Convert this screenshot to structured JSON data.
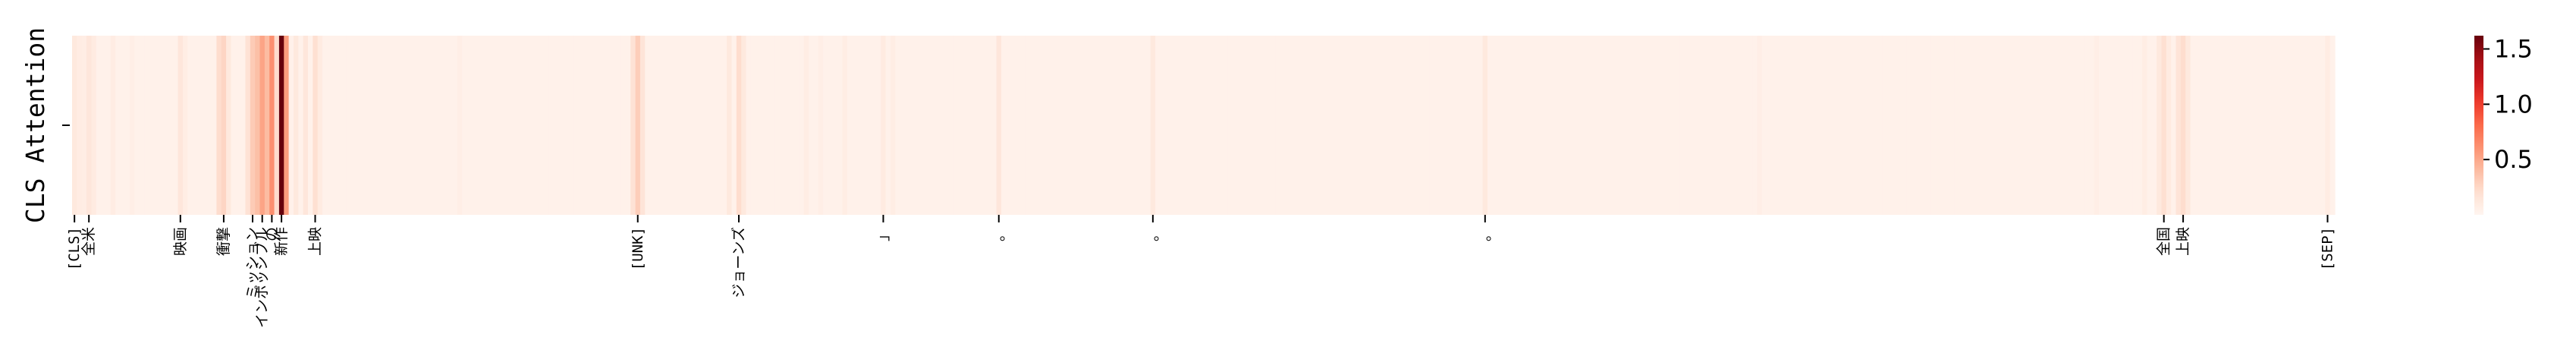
{
  "chart_data": {
    "type": "heatmap",
    "title": "",
    "ylabel": "CLS Attention",
    "y_tick_labels": [
      ""
    ],
    "x_tick_labels": [
      "[CLS]",
      "全米",
      "映画",
      "衝撃",
      "ミッション",
      "インポッシブル",
      "の",
      "新作",
      "上映",
      "[UNK]",
      "ジョーンズ",
      "」",
      "。",
      "。",
      "。",
      "全国",
      "上映",
      "[SEP]"
    ],
    "x_tick_positions": [
      0,
      3,
      22,
      31,
      37,
      39,
      41,
      43,
      50,
      117,
      138,
      168,
      192,
      224,
      293,
      434,
      438,
      468
    ],
    "n_tokens": 470,
    "colormap": "Reds",
    "colorbar": {
      "ticks": [
        0.5,
        1.0,
        1.5
      ],
      "tick_labels": [
        "0.5",
        "1.0",
        "1.5"
      ],
      "vmin": 0.0,
      "vmax": 1.62
    },
    "base_value": 0.04,
    "values": [
      {
        "i": 0,
        "v": 0.12
      },
      {
        "i": 1,
        "v": 0.09
      },
      {
        "i": 2,
        "v": 0.08
      },
      {
        "i": 3,
        "v": 0.14
      },
      {
        "i": 4,
        "v": 0.1
      },
      {
        "i": 8,
        "v": 0.09
      },
      {
        "i": 12,
        "v": 0.07
      },
      {
        "i": 22,
        "v": 0.14
      },
      {
        "i": 23,
        "v": 0.08
      },
      {
        "i": 30,
        "v": 0.22
      },
      {
        "i": 31,
        "v": 0.26
      },
      {
        "i": 32,
        "v": 0.12
      },
      {
        "i": 36,
        "v": 0.18
      },
      {
        "i": 37,
        "v": 0.32
      },
      {
        "i": 38,
        "v": 0.38
      },
      {
        "i": 39,
        "v": 0.52
      },
      {
        "i": 40,
        "v": 0.4
      },
      {
        "i": 41,
        "v": 0.62
      },
      {
        "i": 42,
        "v": 0.22
      },
      {
        "i": 43,
        "v": 1.62
      },
      {
        "i": 44,
        "v": 0.55
      },
      {
        "i": 46,
        "v": 0.12
      },
      {
        "i": 48,
        "v": 0.14
      },
      {
        "i": 50,
        "v": 0.2
      },
      {
        "i": 51,
        "v": 0.1
      },
      {
        "i": 80,
        "v": 0.07
      },
      {
        "i": 116,
        "v": 0.18
      },
      {
        "i": 117,
        "v": 0.3
      },
      {
        "i": 118,
        "v": 0.16
      },
      {
        "i": 136,
        "v": 0.12
      },
      {
        "i": 138,
        "v": 0.22
      },
      {
        "i": 139,
        "v": 0.12
      },
      {
        "i": 152,
        "v": 0.08
      },
      {
        "i": 155,
        "v": 0.07
      },
      {
        "i": 160,
        "v": 0.08
      },
      {
        "i": 168,
        "v": 0.1
      },
      {
        "i": 170,
        "v": 0.08
      },
      {
        "i": 192,
        "v": 0.14
      },
      {
        "i": 224,
        "v": 0.12
      },
      {
        "i": 293,
        "v": 0.12
      },
      {
        "i": 350,
        "v": 0.07
      },
      {
        "i": 420,
        "v": 0.07
      },
      {
        "i": 430,
        "v": 0.08
      },
      {
        "i": 433,
        "v": 0.12
      },
      {
        "i": 434,
        "v": 0.2
      },
      {
        "i": 435,
        "v": 0.1
      },
      {
        "i": 437,
        "v": 0.16
      },
      {
        "i": 438,
        "v": 0.22
      },
      {
        "i": 439,
        "v": 0.12
      },
      {
        "i": 468,
        "v": 0.09
      }
    ]
  }
}
